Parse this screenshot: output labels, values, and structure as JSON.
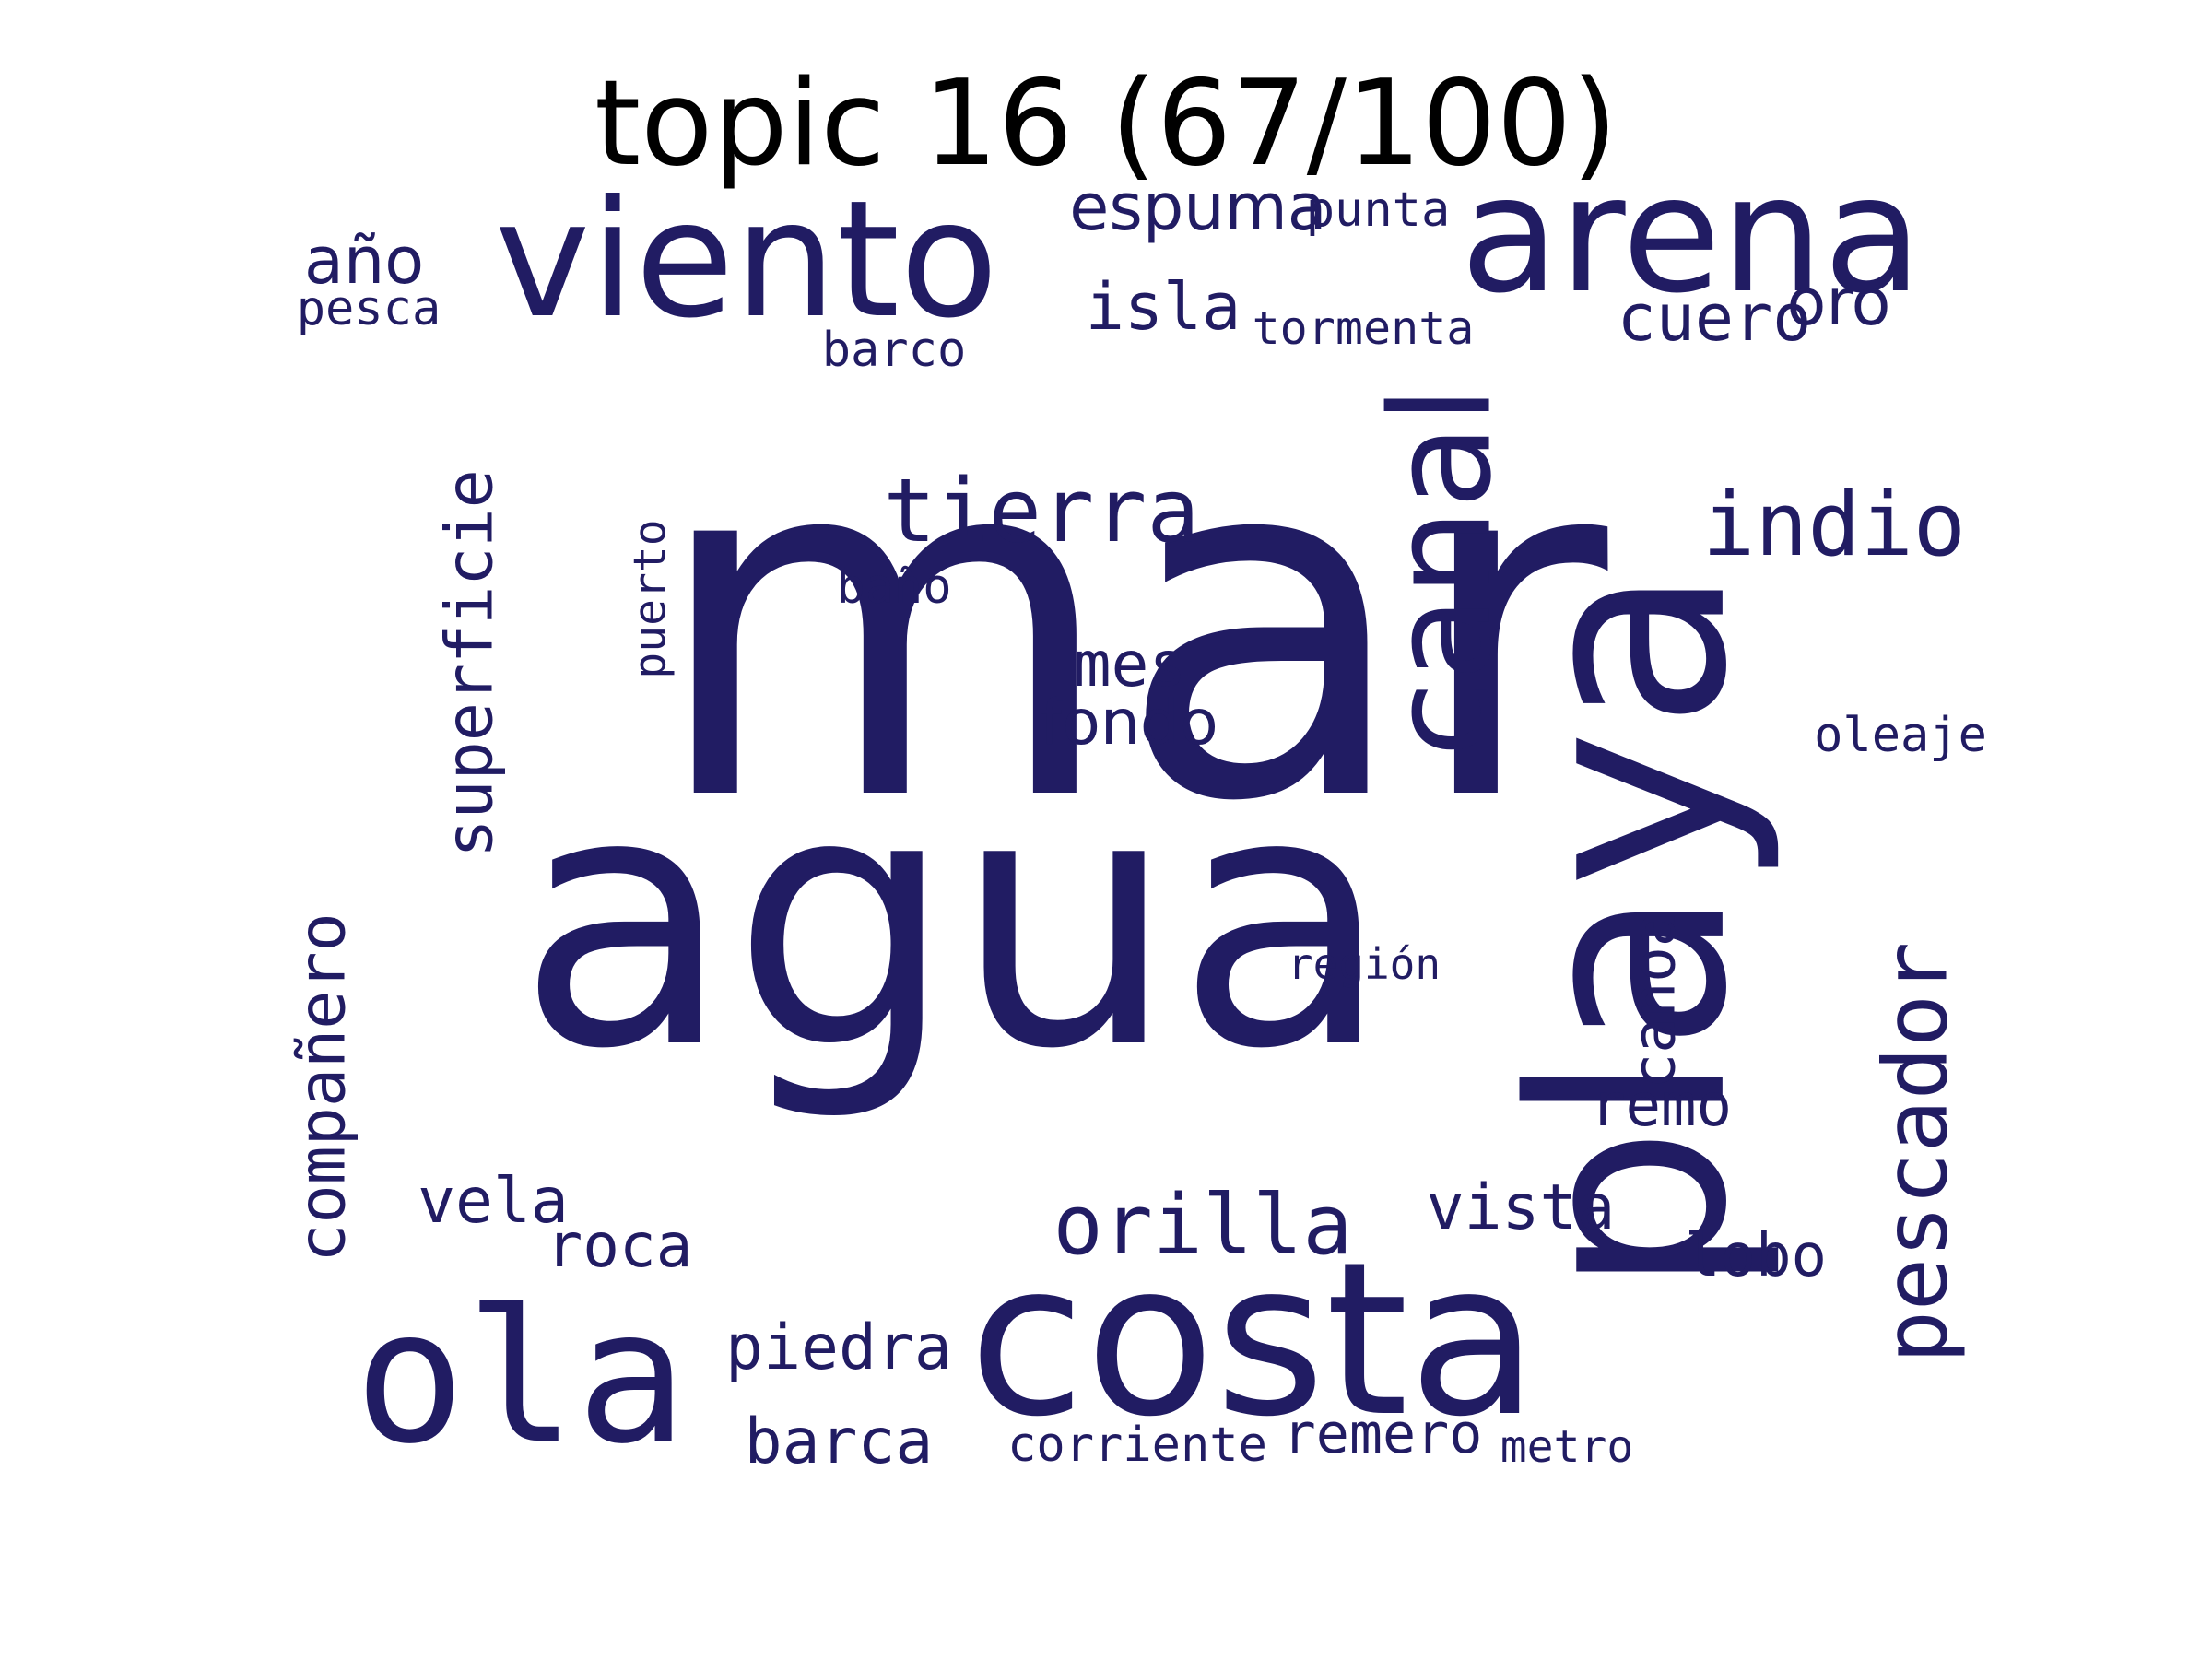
{
  "title": "topic 16 (67/100)",
  "word_color": "#211c63",
  "words": [
    {
      "text": "mar",
      "vertical": false,
      "mono": false
    },
    {
      "text": "agua",
      "vertical": false,
      "mono": false
    },
    {
      "text": "playa",
      "vertical": true,
      "mono": false
    },
    {
      "text": "costa",
      "vertical": false,
      "mono": false
    },
    {
      "text": "ola",
      "vertical": false,
      "mono": true
    },
    {
      "text": "viento",
      "vertical": false,
      "mono": false
    },
    {
      "text": "arena",
      "vertical": false,
      "mono": false
    },
    {
      "text": "canal",
      "vertical": true,
      "mono": false
    },
    {
      "text": "tierra",
      "vertical": false,
      "mono": true
    },
    {
      "text": "indio",
      "vertical": false,
      "mono": true
    },
    {
      "text": "pescador",
      "vertical": true,
      "mono": true
    },
    {
      "text": "orilla",
      "vertical": false,
      "mono": true
    },
    {
      "text": "espuma",
      "vertical": false,
      "mono": false
    },
    {
      "text": "isla",
      "vertical": false,
      "mono": true
    },
    {
      "text": "oro",
      "vertical": false,
      "mono": false
    },
    {
      "text": "cuero",
      "vertical": false,
      "mono": true
    },
    {
      "text": "año",
      "vertical": false,
      "mono": false
    },
    {
      "text": "superficie",
      "vertical": true,
      "mono": true
    },
    {
      "text": "compañero",
      "vertical": true,
      "mono": true
    },
    {
      "text": "mes",
      "vertical": false,
      "mono": true
    },
    {
      "text": "fondo",
      "vertical": false,
      "mono": false
    },
    {
      "text": "piedra",
      "vertical": false,
      "mono": true
    },
    {
      "text": "barca",
      "vertical": false,
      "mono": true
    },
    {
      "text": "vista",
      "vertical": false,
      "mono": true
    },
    {
      "text": "vela",
      "vertical": false,
      "mono": true
    },
    {
      "text": "roca",
      "vertical": false,
      "mono": true
    },
    {
      "text": "remo",
      "vertical": false,
      "mono": true
    },
    {
      "text": "lobo",
      "vertical": false,
      "mono": true
    },
    {
      "text": "canoa",
      "vertical": true,
      "mono": true
    },
    {
      "text": "remero",
      "vertical": false,
      "mono": true
    },
    {
      "text": "punta",
      "vertical": false,
      "mono": true
    },
    {
      "text": "pesca",
      "vertical": false,
      "mono": true
    },
    {
      "text": "tormenta",
      "vertical": false,
      "mono": true
    },
    {
      "text": "barco",
      "vertical": false,
      "mono": true
    },
    {
      "text": "puerto",
      "vertical": true,
      "mono": true
    },
    {
      "text": "baño",
      "vertical": false,
      "mono": true
    },
    {
      "text": "oleaje",
      "vertical": false,
      "mono": true
    },
    {
      "text": "región",
      "vertical": false,
      "mono": true
    },
    {
      "text": "corriente",
      "vertical": false,
      "mono": true
    },
    {
      "text": "metro",
      "vertical": false,
      "mono": true
    }
  ]
}
